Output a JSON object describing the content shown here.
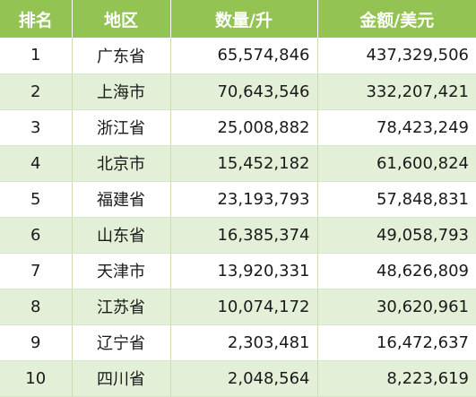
{
  "table": {
    "headers": [
      "排名",
      "地区",
      "数量/升",
      "金额/美元"
    ],
    "rows": [
      [
        "1",
        "广东省",
        "65,574,846",
        "437,329,506"
      ],
      [
        "2",
        "上海市",
        "70,643,546",
        "332,207,421"
      ],
      [
        "3",
        "浙江省",
        "25,008,882",
        "78,423,249"
      ],
      [
        "4",
        "北京市",
        "15,452,182",
        "61,600,824"
      ],
      [
        "5",
        "福建省",
        "23,193,793",
        "57,848,831"
      ],
      [
        "6",
        "山东省",
        "16,385,374",
        "49,058,793"
      ],
      [
        "7",
        "天津市",
        "13,920,331",
        "48,626,809"
      ],
      [
        "8",
        "江苏省",
        "10,074,172",
        "30,620,961"
      ],
      [
        "9",
        "辽宁省",
        "2,303,481",
        "16,472,637"
      ],
      [
        "10",
        "四川省",
        "2,048,564",
        "8,223,619"
      ]
    ]
  },
  "colors": {
    "header_bg": "#92c353",
    "header_text": "#ffffff",
    "stripe": "#e4efd8"
  }
}
